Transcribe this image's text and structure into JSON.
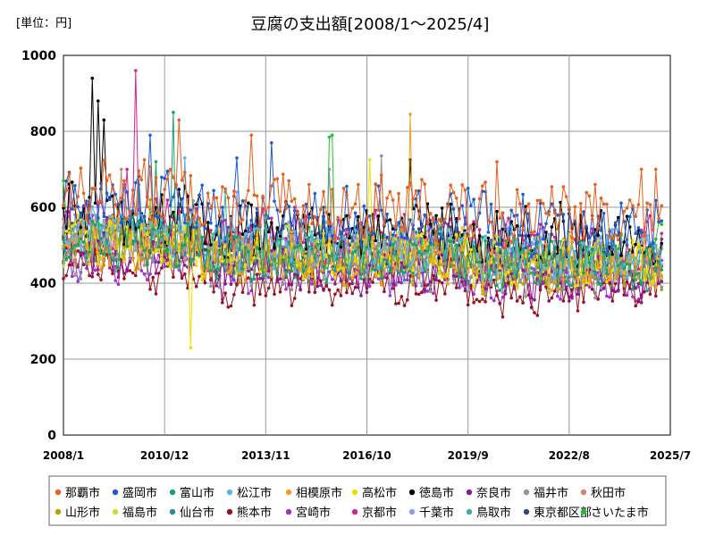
{
  "chart_data": {
    "type": "line",
    "title": "豆腐の支出額[2008/1～2025/4]",
    "unit_label": "[単位：円]",
    "xlabel": "",
    "ylabel": "",
    "ylim": [
      0,
      1000
    ],
    "yticks": [
      0,
      200,
      400,
      600,
      800,
      1000
    ],
    "xlim": [
      "2008/1",
      "2025/7"
    ],
    "xticks": [
      "2008/1",
      "2010/12",
      "2013/11",
      "2016/10",
      "2019/9",
      "2022/8",
      "2025/7"
    ],
    "grid": true,
    "legend_position": "bottom",
    "series": [
      {
        "name": "那覇市",
        "color": "#e8601c",
        "base": 600,
        "amp": 70,
        "peaks": [
          [
            40,
            830
          ],
          [
            65,
            790
          ],
          [
            150,
            720
          ],
          [
            200,
            700
          ],
          [
            255,
            690
          ],
          [
            290,
            745
          ],
          [
            205,
            700
          ]
        ]
      },
      {
        "name": "盛岡市",
        "color": "#1f5bd1",
        "base": 575,
        "amp": 70,
        "peaks": [
          [
            30,
            790
          ],
          [
            72,
            770
          ],
          [
            60,
            730
          ],
          [
            140,
            650
          ],
          [
            286,
            700
          ]
        ]
      },
      {
        "name": "富山市",
        "color": "#1aa06a",
        "base": 470,
        "amp": 60,
        "peaks": [
          [
            38,
            850
          ],
          [
            32,
            720
          ],
          [
            70,
            580
          ]
        ]
      },
      {
        "name": "松江市",
        "color": "#5bb6e6",
        "base": 500,
        "amp": 60,
        "peaks": [
          [
            42,
            730
          ]
        ]
      },
      {
        "name": "相模原市",
        "color": "#f0a020",
        "base": 470,
        "amp": 60,
        "peaks": [
          [
            120,
            845
          ]
        ]
      },
      {
        "name": "高松市",
        "color": "#f2dd00",
        "base": 470,
        "amp": 55,
        "peaks": [
          [
            44,
            230
          ],
          [
            106,
            725
          ]
        ]
      },
      {
        "name": "徳島市",
        "color": "#000000",
        "base": 540,
        "amp": 75,
        "peaks": [
          [
            10,
            940
          ],
          [
            12,
            880
          ],
          [
            14,
            830
          ],
          [
            120,
            725
          ],
          [
            273,
            705
          ]
        ]
      },
      {
        "name": "奈良市",
        "color": "#8b1a8b",
        "base": 440,
        "amp": 55,
        "peaks": [
          [
            2,
            650
          ]
        ]
      },
      {
        "name": "福井市",
        "color": "#8c96a3",
        "base": 450,
        "amp": 60,
        "peaks": [
          [
            110,
            735
          ],
          [
            92,
            700
          ]
        ]
      },
      {
        "name": "秋田市",
        "color": "#c98570",
        "base": 480,
        "amp": 55,
        "peaks": [
          [
            20,
            700
          ]
        ]
      },
      {
        "name": "山形市",
        "color": "#b8a000",
        "base": 460,
        "amp": 50,
        "peaks": [
          [
            30,
            620
          ]
        ]
      },
      {
        "name": "福島市",
        "color": "#c9dd3a",
        "base": 480,
        "amp": 55,
        "peaks": [
          [
            46,
            560
          ]
        ]
      },
      {
        "name": "仙台市",
        "color": "#2d8c9c",
        "base": 470,
        "amp": 55,
        "peaks": [
          [
            26,
            660
          ]
        ]
      },
      {
        "name": "熊本市",
        "color": "#9b1020",
        "base": 400,
        "amp": 50,
        "peaks": [
          [
            50,
            560
          ]
        ]
      },
      {
        "name": "宮崎市",
        "color": "#a030d0",
        "base": 430,
        "amp": 55,
        "peaks": [
          [
            80,
            600
          ]
        ]
      },
      {
        "name": "京都市",
        "color": "#d4258f",
        "base": 520,
        "amp": 60,
        "peaks": [
          [
            25,
            960
          ],
          [
            22,
            700
          ]
        ]
      },
      {
        "name": "千葉市",
        "color": "#8da0e0",
        "base": 500,
        "amp": 55,
        "peaks": [
          [
            60,
            640
          ]
        ]
      },
      {
        "name": "鳥取市",
        "color": "#34b3a0",
        "base": 480,
        "amp": 60,
        "peaks": [
          [
            56,
            640
          ]
        ]
      },
      {
        "name": "東京都区部",
        "color": "#2e4a6e",
        "base": 500,
        "amp": 45,
        "peaks": [
          [
            90,
            600
          ]
        ]
      },
      {
        "name": "さいたま市",
        "color": "#22c02a",
        "base": 480,
        "amp": 55,
        "peaks": [
          [
            0,
            670
          ],
          [
            92,
            785
          ],
          [
            93,
            790
          ],
          [
            206,
            560
          ],
          [
            207,
            555
          ]
        ]
      }
    ]
  }
}
